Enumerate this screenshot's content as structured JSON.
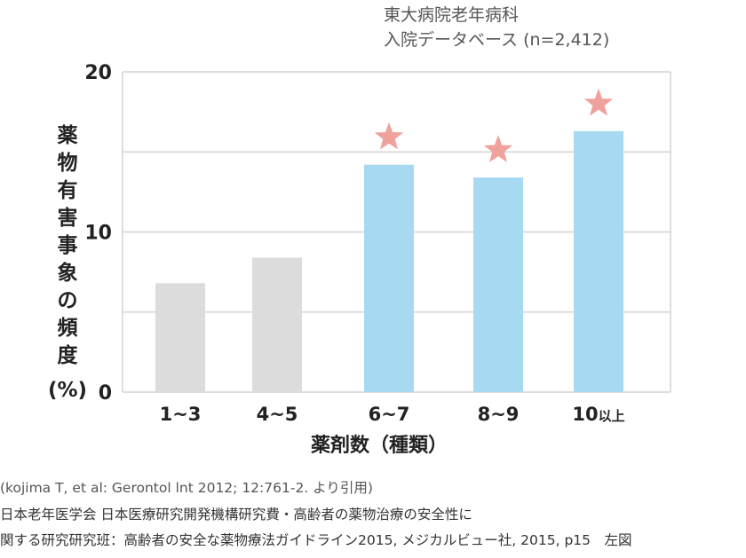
{
  "chart_data": {
    "type": "bar",
    "subtitle_line1": "東大病院老年病科",
    "subtitle_line2": "入院データベース (n=2,412)",
    "xlabel": "薬剤数（種類）",
    "ylabel": "薬物有害事象の頻度(%)",
    "categories": [
      "1~3",
      "4~5",
      "6~7",
      "8~9",
      "10以上"
    ],
    "values": [
      6.8,
      8.4,
      14.2,
      13.4,
      16.3
    ],
    "highlighted": [
      false,
      false,
      true,
      true,
      true
    ],
    "star_marker": [
      false,
      false,
      true,
      true,
      true
    ],
    "ylim": [
      0,
      20
    ],
    "yticks": [
      0,
      10,
      20
    ],
    "gridlines": [
      0,
      5,
      10,
      15,
      20
    ],
    "grid": true,
    "colors": {
      "bar_default": "#dcdcdc",
      "bar_highlight": "#a7d9f2",
      "star": "#f0a19b",
      "grid": "#d4d4d4"
    }
  },
  "source": {
    "line1": "(kojima T, et al: Gerontol lnt 2012; 12:761-2. より引用)",
    "line2": "日本老年医学会 日本医療研究開発機構研究費・高齢者の薬物治療の安全性に",
    "line3": "関する研究研究班：高齢者の安全な薬物療法ガイドライン2015, メジカルビュー社, 2015, p15　左図"
  }
}
